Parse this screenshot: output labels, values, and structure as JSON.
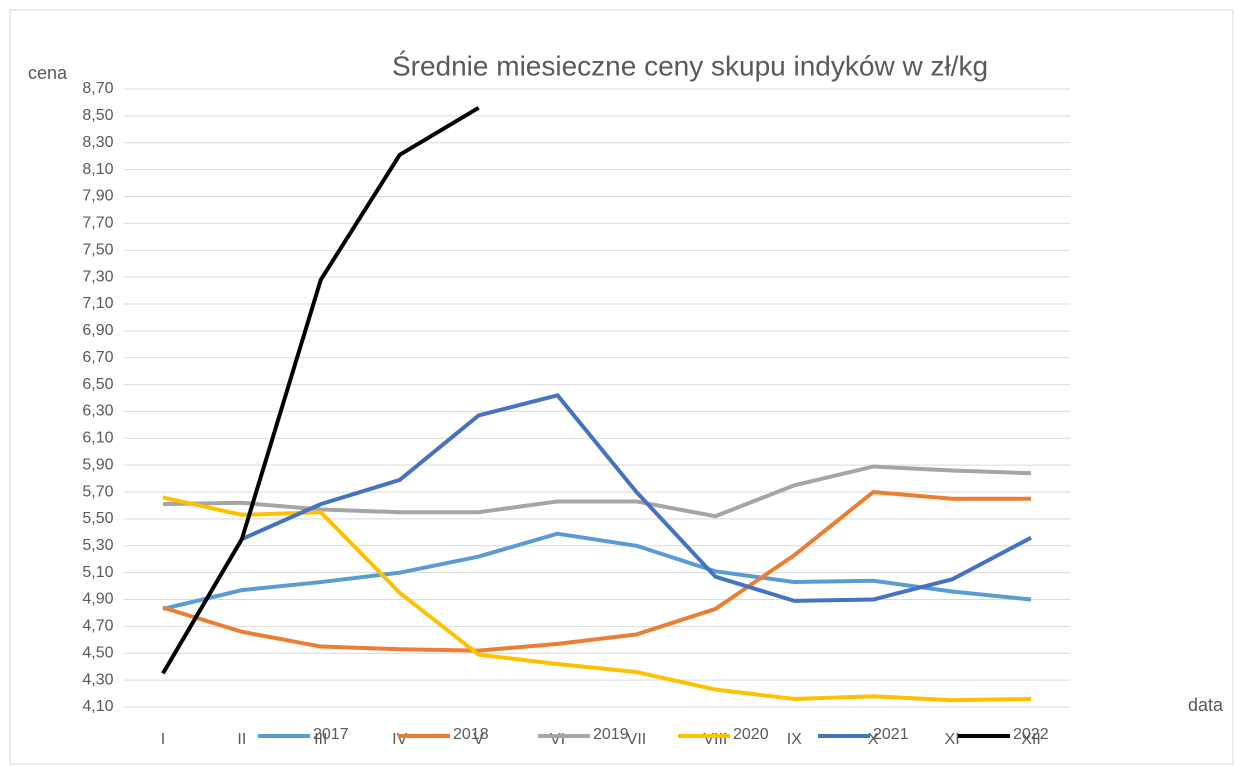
{
  "chart_data": {
    "type": "line",
    "title": "Średnie miesieczne ceny skupu indyków w zł/kg",
    "y_label": "cena",
    "x_label": "data",
    "categories": [
      "I",
      "II",
      "III",
      "IV",
      "V",
      "VI",
      "VII",
      "VIII",
      "IX",
      "X",
      "XI",
      "XII"
    ],
    "series": [
      {
        "name": "2017",
        "color": "#5b9bd5",
        "values": [
          4.83,
          4.97,
          5.03,
          5.1,
          5.22,
          5.39,
          5.3,
          5.11,
          5.03,
          5.04,
          4.96,
          4.9
        ]
      },
      {
        "name": "2018",
        "color": "#ed7d31",
        "values": [
          4.84,
          4.66,
          4.55,
          4.53,
          4.52,
          4.57,
          4.64,
          4.83,
          5.23,
          5.7,
          5.65,
          5.65
        ]
      },
      {
        "name": "2019",
        "color": "#a5a5a5",
        "values": [
          5.61,
          5.62,
          5.57,
          5.55,
          5.55,
          5.63,
          5.63,
          5.52,
          5.75,
          5.89,
          5.86,
          5.84
        ]
      },
      {
        "name": "2020",
        "color": "#ffc000",
        "values": [
          5.66,
          5.53,
          5.55,
          4.95,
          4.49,
          4.42,
          4.36,
          4.23,
          4.16,
          4.18,
          4.15,
          4.16
        ]
      },
      {
        "name": "2021",
        "color": "#4472c4",
        "values": [
          null,
          5.35,
          5.61,
          5.79,
          6.27,
          6.42,
          5.7,
          5.07,
          4.89,
          4.9,
          5.05,
          5.36
        ]
      },
      {
        "name": "2022",
        "color": "#000000",
        "values": [
          4.35,
          5.35,
          7.28,
          8.21,
          8.56,
          null,
          null,
          null,
          null,
          null,
          null,
          null
        ]
      }
    ],
    "ylim": [
      4.1,
      8.7
    ],
    "yticks": [
      {
        "value": 4.1,
        "label": "4,10"
      },
      {
        "value": 4.3,
        "label": "4,30"
      },
      {
        "value": 4.5,
        "label": "4,50"
      },
      {
        "value": 4.7,
        "label": "4,70"
      },
      {
        "value": 4.9,
        "label": "4,90"
      },
      {
        "value": 5.1,
        "label": "5,10"
      },
      {
        "value": 5.3,
        "label": "5,30"
      },
      {
        "value": 5.5,
        "label": "5,50"
      },
      {
        "value": 5.7,
        "label": "5,70"
      },
      {
        "value": 5.9,
        "label": "5,90"
      },
      {
        "value": 6.1,
        "label": "6,10"
      },
      {
        "value": 6.3,
        "label": "6,30"
      },
      {
        "value": 6.5,
        "label": "6,50"
      },
      {
        "value": 6.7,
        "label": "6,70"
      },
      {
        "value": 6.9,
        "label": "6,90"
      },
      {
        "value": 7.1,
        "label": "7,10"
      },
      {
        "value": 7.3,
        "label": "7,30"
      },
      {
        "value": 7.5,
        "label": "7,50"
      },
      {
        "value": 7.7,
        "label": "7,70"
      },
      {
        "value": 7.9,
        "label": "7,90"
      },
      {
        "value": 8.1,
        "label": "8,10"
      },
      {
        "value": 8.3,
        "label": "8,30"
      },
      {
        "value": 8.5,
        "label": "8,50"
      },
      {
        "value": 8.7,
        "label": "8,70"
      }
    ],
    "grid": true
  }
}
